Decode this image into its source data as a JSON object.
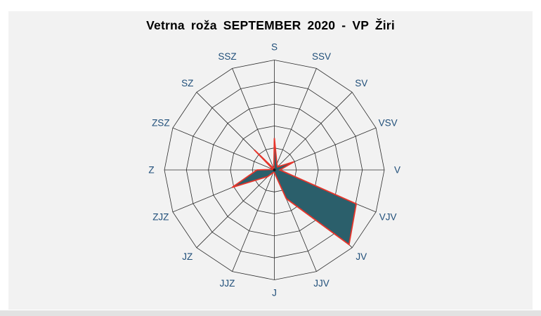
{
  "chart_data": {
    "type": "radar",
    "subtype": "wind-rose",
    "title": "Vetrna roža SEPTEMBER 2020 - VP Žiri",
    "directions": [
      "S",
      "SSV",
      "SV",
      "VSV",
      "V",
      "VJV",
      "JV",
      "JJV",
      "J",
      "JJZ",
      "JZ",
      "ZJZ",
      "Z",
      "ZSZ",
      "SZ",
      "SSZ"
    ],
    "values_ring_units": [
      1.45,
      0.3,
      0.2,
      0.97,
      0.25,
      4.03,
      4.8,
      1.41,
      0.12,
      0.12,
      0.42,
      2.08,
      0.79,
      0.06,
      1.29,
      0.06
    ],
    "radial_axis": {
      "rings": 5,
      "max_ring_units": 5,
      "tick_labels_visible": false
    },
    "rotation": "clockwise-from-north",
    "grid_shape": "polygonal-16-gon",
    "legend": null,
    "colors": {
      "series_fill": "#2b5f6b",
      "series_outline": "#e6352b",
      "grid_line": "#2b2b2b",
      "direction_label": "#1f4e79",
      "panel_background": "#f2f2f2",
      "page_background": "#ffffff",
      "title_color": "#000000"
    }
  }
}
